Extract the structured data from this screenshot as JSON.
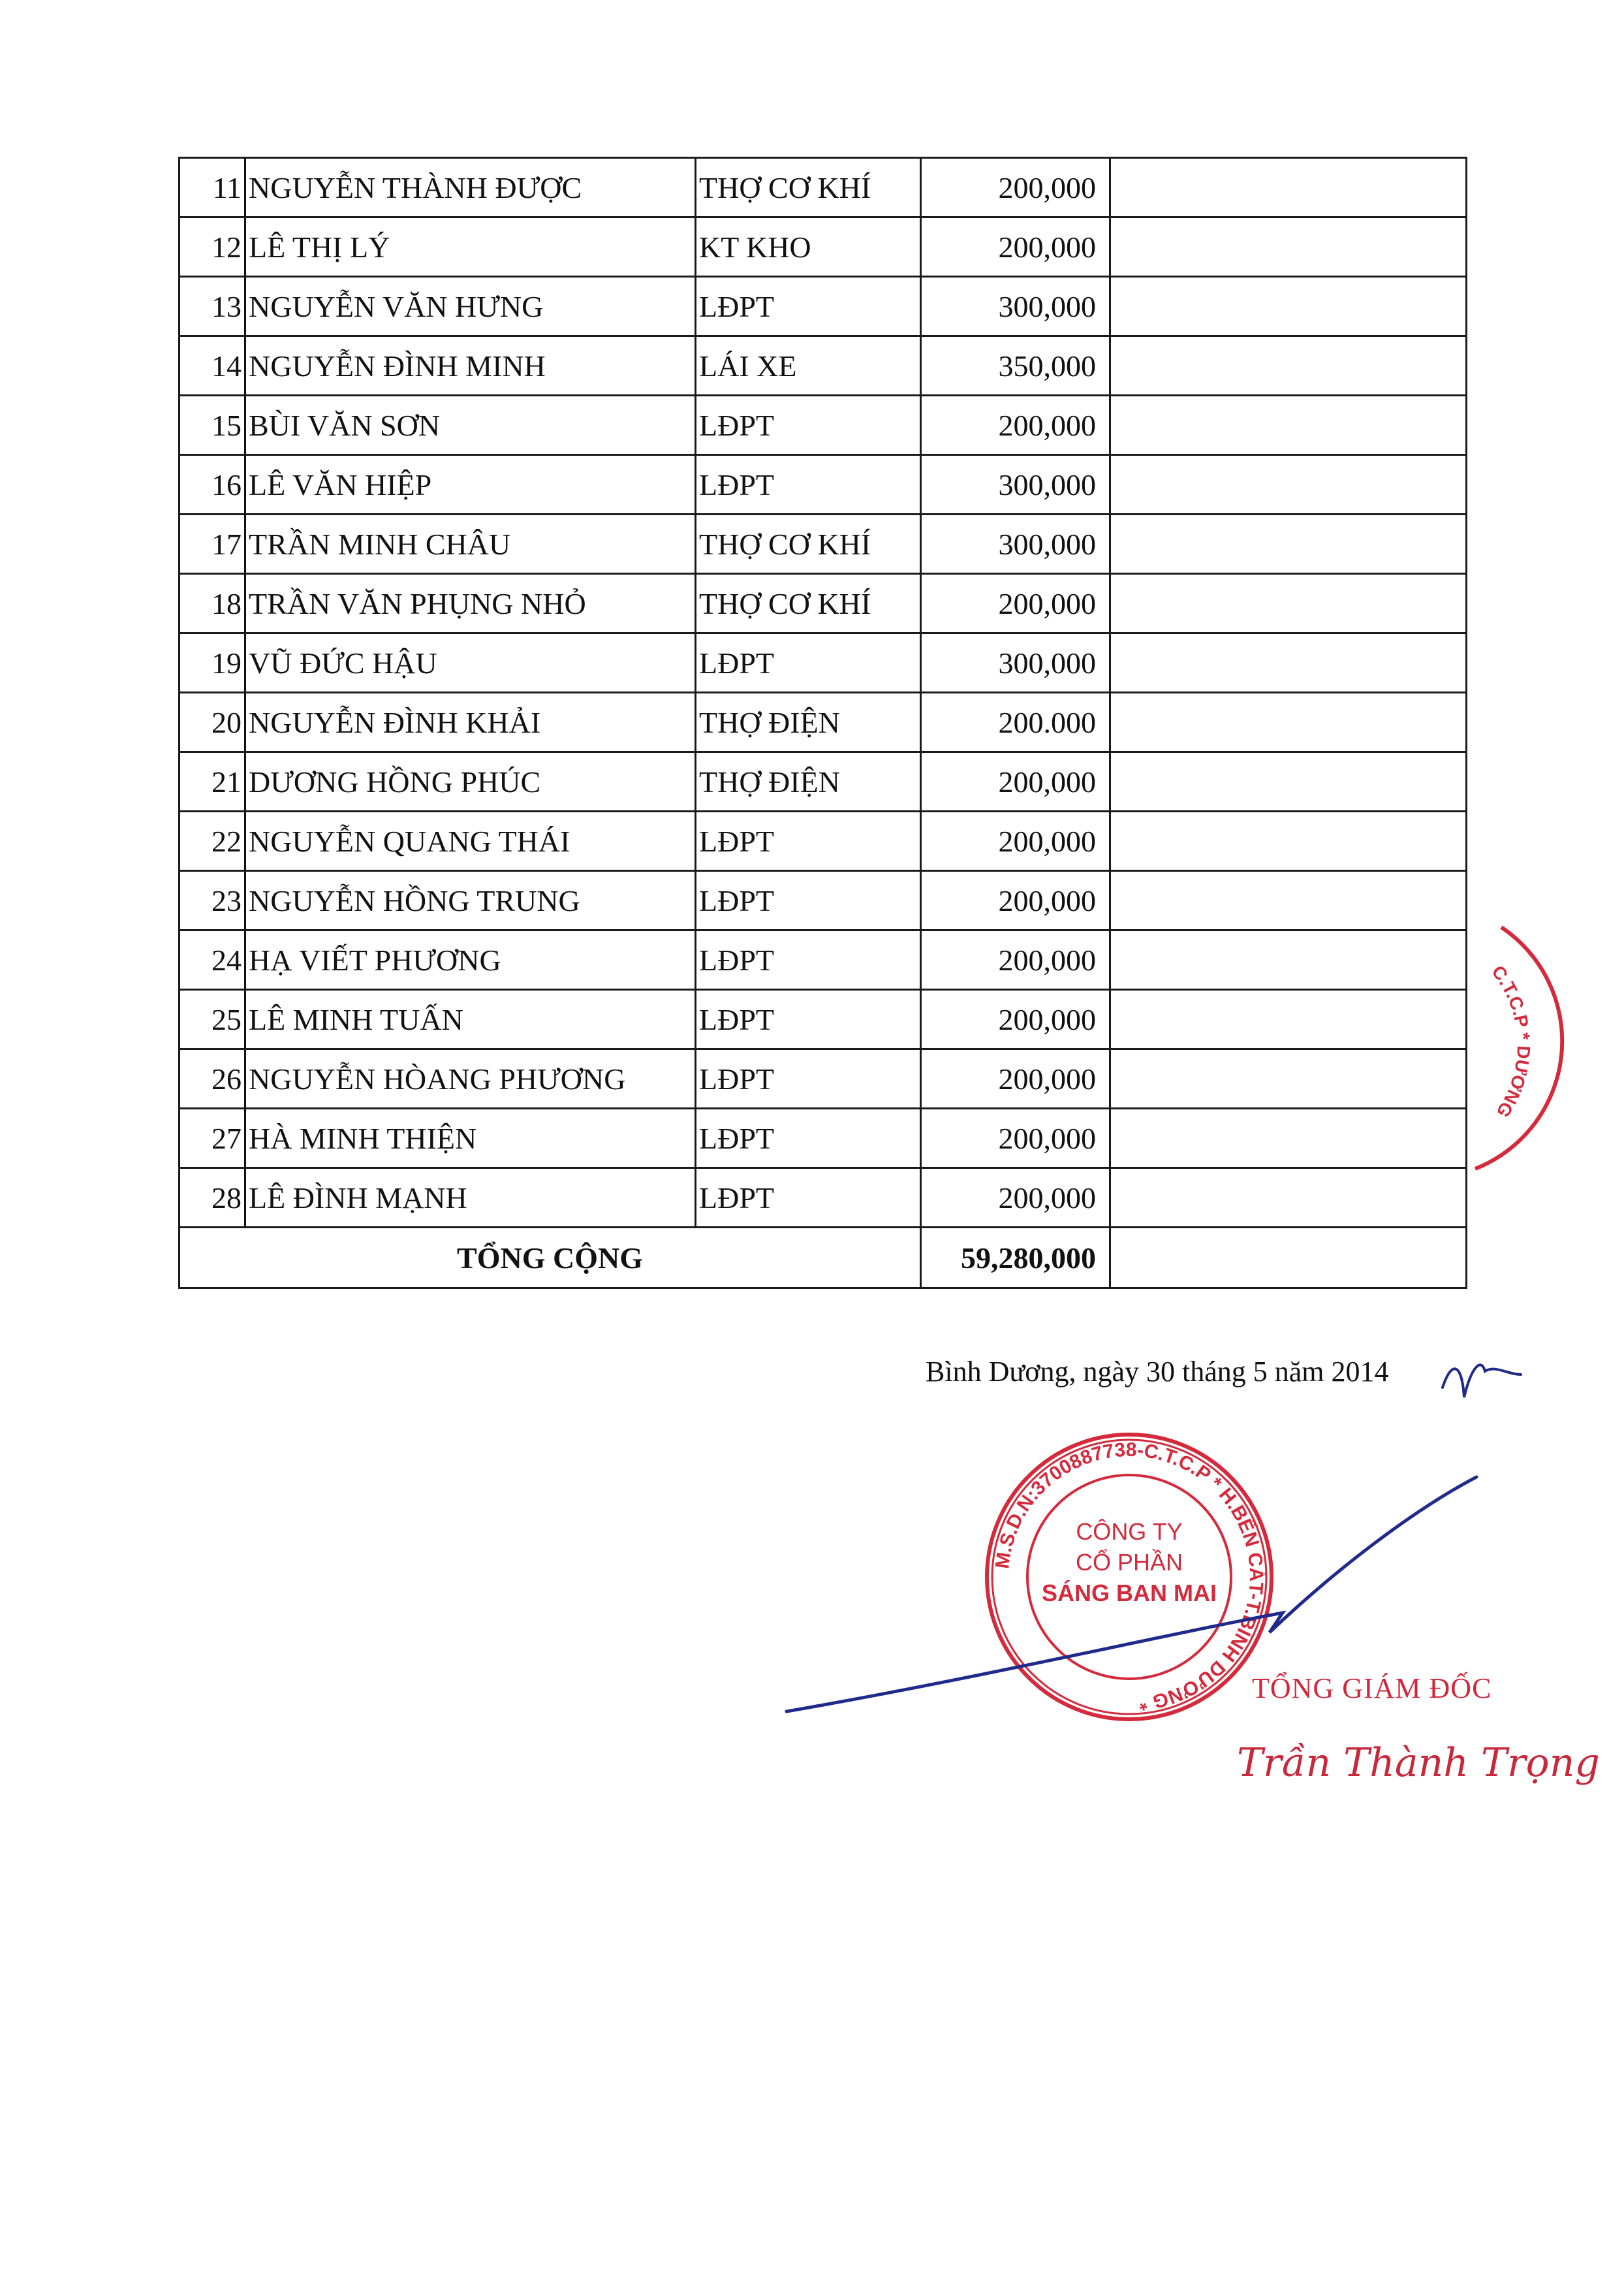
{
  "table": {
    "rows": [
      {
        "no": "11",
        "name": "NGUYỄN THÀNH ĐƯỢC",
        "role": "THỢ CƠ KHÍ",
        "amount": "200,000"
      },
      {
        "no": "12",
        "name": "LÊ THỊ LÝ",
        "role": "KT KHO",
        "amount": "200,000"
      },
      {
        "no": "13",
        "name": "NGUYỄN VĂN HƯNG",
        "role": "LĐPT",
        "amount": "300,000"
      },
      {
        "no": "14",
        "name": "NGUYỄN ĐÌNH MINH",
        "role": "LÁI XE",
        "amount": "350,000"
      },
      {
        "no": "15",
        "name": "BÙI VĂN SƠN",
        "role": "LĐPT",
        "amount": "200,000"
      },
      {
        "no": "16",
        "name": "LÊ VĂN HIỆP",
        "role": "LĐPT",
        "amount": "300,000"
      },
      {
        "no": "17",
        "name": "TRẦN MINH CHÂU",
        "role": "THỢ CƠ KHÍ",
        "amount": "300,000"
      },
      {
        "no": "18",
        "name": "TRẦN VĂN PHỤNG NHỎ",
        "role": "THỢ CƠ KHÍ",
        "amount": "200,000"
      },
      {
        "no": "19",
        "name": "VŨ ĐỨC HẬU",
        "role": "LĐPT",
        "amount": "300,000"
      },
      {
        "no": "20",
        "name": "NGUYỄN ĐÌNH KHẢI",
        "role": "THỢ ĐIỆN",
        "amount": "200.000"
      },
      {
        "no": "21",
        "name": "DƯƠNG HỒNG PHÚC",
        "role": "THỢ ĐIỆN",
        "amount": "200,000"
      },
      {
        "no": "22",
        "name": "NGUYỄN QUANG THÁI",
        "role": "LĐPT",
        "amount": "200,000"
      },
      {
        "no": "23",
        "name": "NGUYỄN HỒNG TRUNG",
        "role": "LĐPT",
        "amount": "200,000"
      },
      {
        "no": "24",
        "name": "HẠ VIẾT PHƯƠNG",
        "role": "LĐPT",
        "amount": "200,000"
      },
      {
        "no": "25",
        "name": "LÊ MINH TUẤN",
        "role": "LĐPT",
        "amount": "200,000"
      },
      {
        "no": "26",
        "name": "NGUYỄN HÒANG PHƯƠNG",
        "role": "LĐPT",
        "amount": "200,000"
      },
      {
        "no": "27",
        "name": "HÀ MINH THIỆN",
        "role": "LĐPT",
        "amount": "200,000"
      },
      {
        "no": "28",
        "name": "LÊ ĐÌNH MẠNH",
        "role": "LĐPT",
        "amount": "200,000"
      }
    ],
    "total_label": "TỔNG CỘNG",
    "total_amount": "59,280,000"
  },
  "footer": {
    "date_line": "Bình Dương, ngày 30 tháng 5 năm 2014",
    "signer_title": "TỔNG GIÁM ĐỐC",
    "signer_name": "Trần Thành Trọng"
  },
  "stamp": {
    "ring_text": "M.S.D.N:3700887738-C.T.C.P * H.BẾN CÁT-T.BÌNH DƯƠNG *",
    "line1": "CÔNG TY",
    "line2": "CỔ PHẦN",
    "line3": "SÁNG BAN MAI",
    "partial_text": "C.T.C.P * DƯƠNG"
  },
  "colors": {
    "stamp": "#d42a3c",
    "ink": "#1f2a8a"
  }
}
